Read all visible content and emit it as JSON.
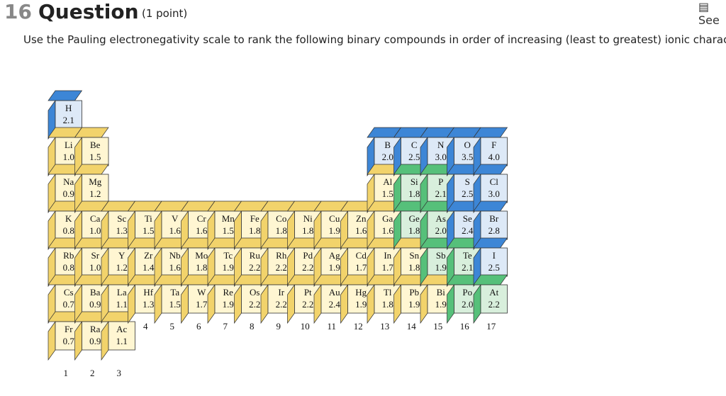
{
  "header": {
    "number": "16",
    "title": "Question",
    "points": "(1 point)",
    "link": "See"
  },
  "prompt": "Use the Pauling electronegativity scale to rank the following binary compounds in order of increasing (least to greatest) ionic character.",
  "table": {
    "groups": [
      1,
      2,
      3,
      4,
      5,
      6,
      7,
      8,
      9,
      10,
      11,
      12,
      13,
      14,
      15,
      16,
      17
    ],
    "columns": [
      [
        [
          "H",
          "2.1"
        ],
        [
          "Li",
          "1.0"
        ],
        [
          "Na",
          "0.9"
        ],
        [
          "K",
          "0.8"
        ],
        [
          "Rb",
          "0.8"
        ],
        [
          "Cs",
          "0.7"
        ],
        [
          "Fr",
          "0.7"
        ]
      ],
      [
        [
          "Be",
          "1.5"
        ],
        [
          "Mg",
          "1.2"
        ],
        [
          "Ca",
          "1.0"
        ],
        [
          "Sr",
          "1.0"
        ],
        [
          "Ba",
          "0.9"
        ],
        [
          "Ra",
          "0.9"
        ]
      ],
      [
        [
          "Sc",
          "1.3"
        ],
        [
          "Y",
          "1.2"
        ],
        [
          "La",
          "1.1"
        ],
        [
          "Ac",
          "1.1"
        ]
      ],
      [
        [
          "Ti",
          "1.5"
        ],
        [
          "Zr",
          "1.4"
        ],
        [
          "Hf",
          "1.3"
        ]
      ],
      [
        [
          "V",
          "1.6"
        ],
        [
          "Nb",
          "1.6"
        ],
        [
          "Ta",
          "1.5"
        ]
      ],
      [
        [
          "Cr",
          "1.6"
        ],
        [
          "Mo",
          "1.8"
        ],
        [
          "W",
          "1.7"
        ]
      ],
      [
        [
          "Mn",
          "1.5"
        ],
        [
          "Tc",
          "1.9"
        ],
        [
          "Re",
          "1.9"
        ]
      ],
      [
        [
          "Fe",
          "1.8"
        ],
        [
          "Ru",
          "2.2"
        ],
        [
          "Os",
          "2.2"
        ]
      ],
      [
        [
          "Co",
          "1.8"
        ],
        [
          "Rh",
          "2.2"
        ],
        [
          "Ir",
          "2.2"
        ]
      ],
      [
        [
          "Ni",
          "1.8"
        ],
        [
          "Pd",
          "2.2"
        ],
        [
          "Pt",
          "2.2"
        ]
      ],
      [
        [
          "Cu",
          "1.9"
        ],
        [
          "Ag",
          "1.9"
        ],
        [
          "Au",
          "2.4"
        ]
      ],
      [
        [
          "Zn",
          "1.6"
        ],
        [
          "Cd",
          "1.7"
        ],
        [
          "Hg",
          "1.9"
        ]
      ],
      [
        [
          "B",
          "2.0"
        ],
        [
          "Al",
          "1.5"
        ],
        [
          "Ga",
          "1.6"
        ],
        [
          "In",
          "1.7"
        ],
        [
          "Tl",
          "1.8"
        ]
      ],
      [
        [
          "C",
          "2.5"
        ],
        [
          "Si",
          "1.8"
        ],
        [
          "Ge",
          "1.8"
        ],
        [
          "Sn",
          "1.8"
        ],
        [
          "Pb",
          "1.9"
        ]
      ],
      [
        [
          "N",
          "3.0"
        ],
        [
          "P",
          "2.1"
        ],
        [
          "As",
          "2.0"
        ],
        [
          "Sb",
          "1.9"
        ],
        [
          "Bi",
          "1.9"
        ]
      ],
      [
        [
          "O",
          "3.5"
        ],
        [
          "S",
          "2.5"
        ],
        [
          "Se",
          "2.4"
        ],
        [
          "Te",
          "2.1"
        ],
        [
          "Po",
          "2.0"
        ]
      ],
      [
        [
          "F",
          "4.0"
        ],
        [
          "Cl",
          "3.0"
        ],
        [
          "Br",
          "2.8"
        ],
        [
          "I",
          "2.5"
        ],
        [
          "At",
          "2.2"
        ]
      ]
    ]
  }
}
